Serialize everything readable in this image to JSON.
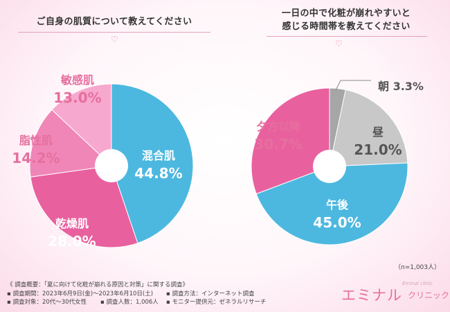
{
  "left_title": "ご自身の肌質について教えてください",
  "right_title_line1": "一日の中で化粧が崩れやすいと",
  "right_title_line2": "感じる時間帯を教えてください",
  "chart_data": [
    {
      "type": "pie",
      "title": "ご自身の肌質について教えてください",
      "slices": [
        {
          "label": "混合肌",
          "value": 44.8,
          "value_text": "44.8%",
          "color": "#4db8df",
          "text_color": "#ffffff"
        },
        {
          "label": "乾燥肌",
          "value": 28.0,
          "value_text": "28.0%",
          "color": "#e9609f",
          "text_color": "#ffffff"
        },
        {
          "label": "脂性肌",
          "value": 14.2,
          "value_text": "14.2%",
          "color": "#ef86b7",
          "text_color": "#e66f9e"
        },
        {
          "label": "敏感肌",
          "value": 13.0,
          "value_text": "13.0%",
          "color": "#f7a8ce",
          "text_color": "#e66f9e"
        }
      ]
    },
    {
      "type": "pie",
      "title": "一日の中で化粧が崩れやすいと感じる時間帯を教えてください",
      "slices": [
        {
          "label": "朝",
          "value": 3.3,
          "value_text": "3.3%",
          "color": "#a6a6a6",
          "text_color": "#555555"
        },
        {
          "label": "昼",
          "value": 21.0,
          "value_text": "21.0%",
          "color": "#c8c8c8",
          "text_color": "#555555"
        },
        {
          "label": "午後",
          "value": 45.0,
          "value_text": "45.0%",
          "color": "#4db8df",
          "text_color": "#ffffff"
        },
        {
          "label": "夕方以降",
          "value": 30.7,
          "value_text": "30.7%",
          "color": "#e9609f",
          "text_color": "#e66f9e"
        }
      ]
    }
  ],
  "sample_size": "（n=1,003人）",
  "survey": {
    "overview": "《 調査概要：「夏に向けて化粧が崩れる原因と対策」に関する調査》",
    "period": "▪ 調査期間：2023年6月9日(金)～2023年6月10日(土)",
    "method": "▪ 調査方法：インターネット調査",
    "target": "▪ 調査対象：20代～30代女性",
    "count": "▪ 調査人数：1,006人",
    "provider": "▪ モニター提供元：ゼネラルリサーチ"
  },
  "brand": {
    "name_jp": "エミナル",
    "name_sub": "クリニック",
    "name_en": "Eminal clinic"
  }
}
